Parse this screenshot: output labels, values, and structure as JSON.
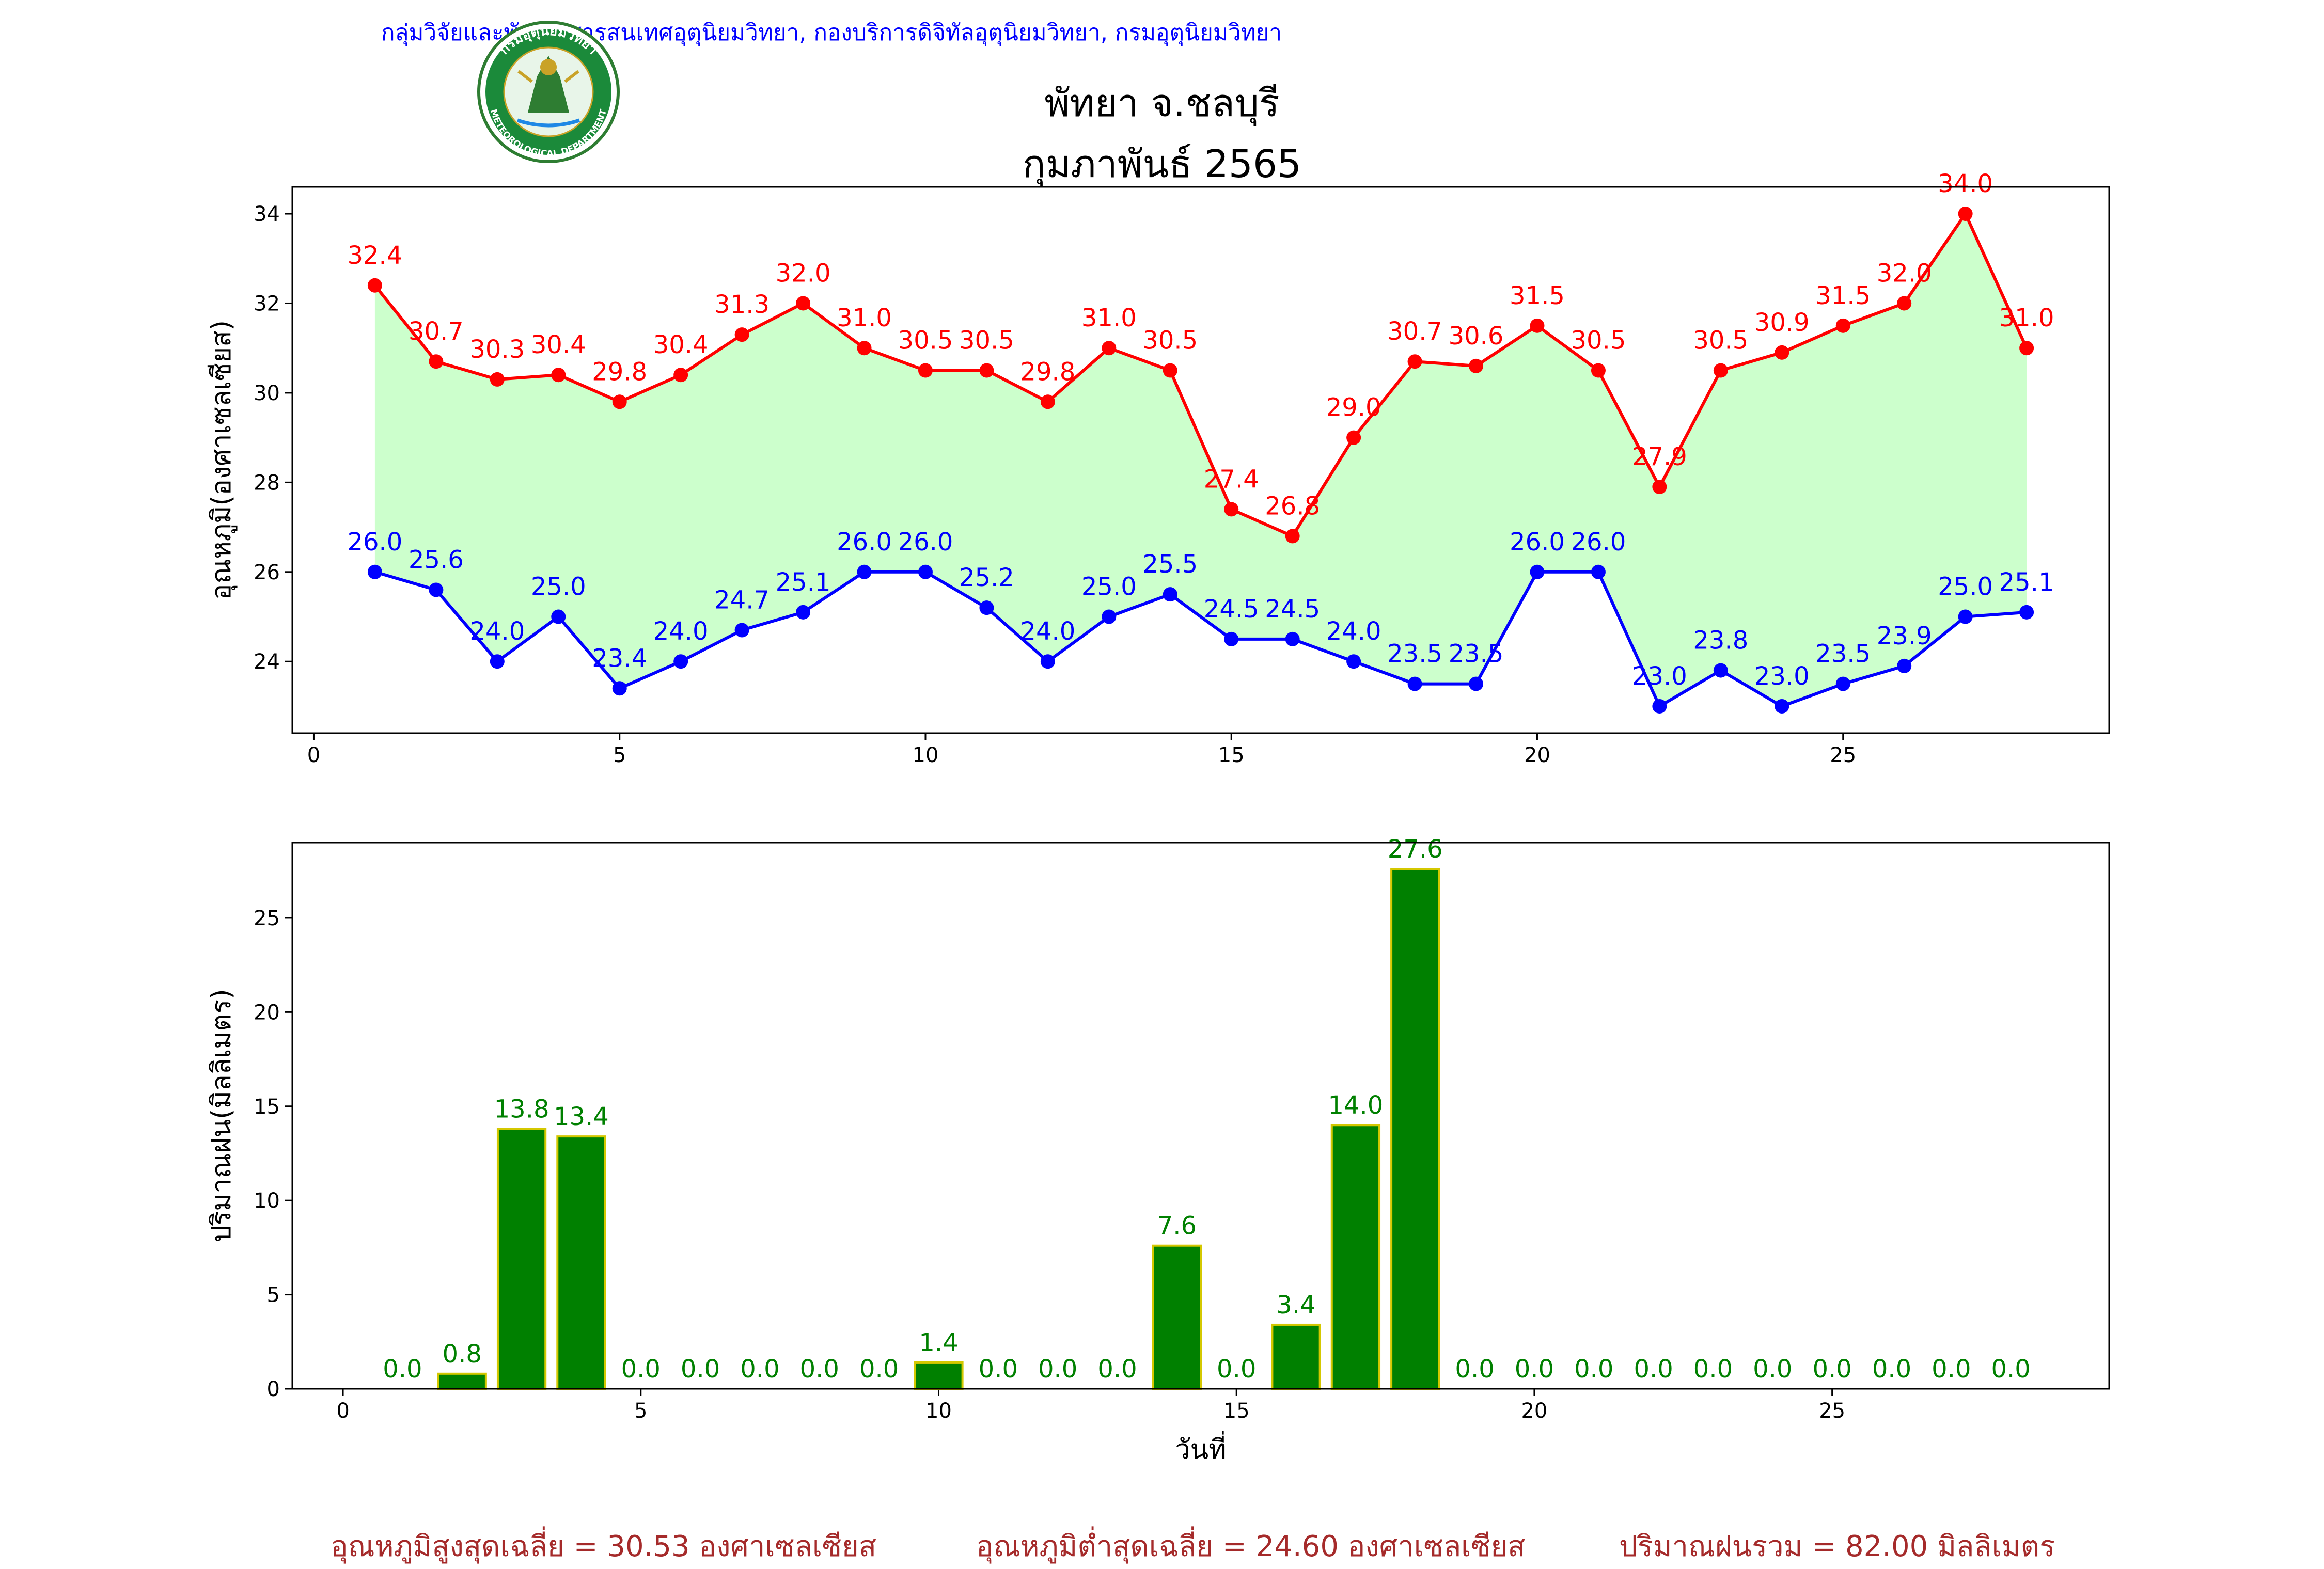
{
  "header": {
    "credit": "กลุ่มวิจัยและพัฒนาสารสนเทศอุตุนิยมวิทยา, กองบริการดิจิทัลอุตุนิยมวิทยา, กรมอุตุนิยมวิทยา",
    "title": "พัทยา จ.ชลบุรี",
    "subtitle": "กุมภาพันธ์ 2565",
    "logo_text_top": "กรมอุตุนิยมวิทยา",
    "logo_text_bottom": "METEOROLOGICAL DEPARTMENT"
  },
  "colors": {
    "max": "#ff0000",
    "min": "#0000ff",
    "fill": "#ccffcc",
    "bar": "#008000",
    "bar_edge": "#d4c800",
    "summary": "#a52a2a"
  },
  "summary": {
    "avg_max": "อุณหภูมิสูงสุดเฉลี่ย = 30.53 องศาเซลเซียส",
    "avg_min": "อุณหภูมิต่ำสุดเฉลี่ย = 24.60 องศาเซลเซียส",
    "total_rain": "ปริมาณฝนรวม = 82.00 มิลลิเมตร"
  },
  "chart_data": [
    {
      "type": "line",
      "ylabel": "อุณหภูมิ(องศาเซลเซียส)",
      "xlabel": "",
      "xlim": [
        -0.35,
        29.35
      ],
      "ylim": [
        22.4,
        34.6
      ],
      "xticks": [
        0,
        5,
        10,
        15,
        20,
        25
      ],
      "yticks": [
        24,
        26,
        28,
        30,
        32,
        34
      ],
      "x": [
        1,
        2,
        3,
        4,
        5,
        6,
        7,
        8,
        9,
        10,
        11,
        12,
        13,
        14,
        15,
        16,
        17,
        18,
        19,
        20,
        21,
        22,
        23,
        24,
        25,
        26,
        27,
        28
      ],
      "max_values": [
        32.4,
        30.7,
        30.3,
        30.4,
        29.8,
        30.4,
        31.3,
        32.0,
        31.0,
        30.5,
        30.5,
        29.8,
        31.0,
        30.5,
        27.4,
        26.8,
        29.0,
        30.7,
        30.6,
        31.5,
        30.5,
        27.9,
        30.5,
        30.9,
        31.5,
        32.0,
        34.0,
        31.0
      ],
      "min_values": [
        26.0,
        25.6,
        24.0,
        25.0,
        23.4,
        24.0,
        24.7,
        25.1,
        26.0,
        26.0,
        25.2,
        24.0,
        25.0,
        25.5,
        24.5,
        24.5,
        24.0,
        23.5,
        23.5,
        26.0,
        26.0,
        23.0,
        23.8,
        23.0,
        23.5,
        23.9,
        25.0,
        25.1
      ],
      "grid": false
    },
    {
      "type": "bar",
      "ylabel": "ปริมาณฝน(มิลลิเมตร)",
      "xlabel": "วันที่",
      "xlim": [
        -0.85,
        29.65
      ],
      "ylim": [
        0,
        29
      ],
      "xticks": [
        0,
        5,
        10,
        15,
        20,
        25
      ],
      "yticks": [
        0,
        5,
        10,
        15,
        20,
        25
      ],
      "x": [
        1,
        2,
        3,
        4,
        5,
        6,
        7,
        8,
        9,
        10,
        11,
        12,
        13,
        14,
        15,
        16,
        17,
        18,
        19,
        20,
        21,
        22,
        23,
        24,
        25,
        26,
        27,
        28
      ],
      "values": [
        0.0,
        0.8,
        13.8,
        13.4,
        0.0,
        0.0,
        0.0,
        0.0,
        0.0,
        1.4,
        0.0,
        0.0,
        0.0,
        7.6,
        0.0,
        3.4,
        14.0,
        27.6,
        0.0,
        0.0,
        0.0,
        0.0,
        0.0,
        0.0,
        0.0,
        0.0,
        0.0,
        0.0
      ],
      "grid": false
    }
  ]
}
